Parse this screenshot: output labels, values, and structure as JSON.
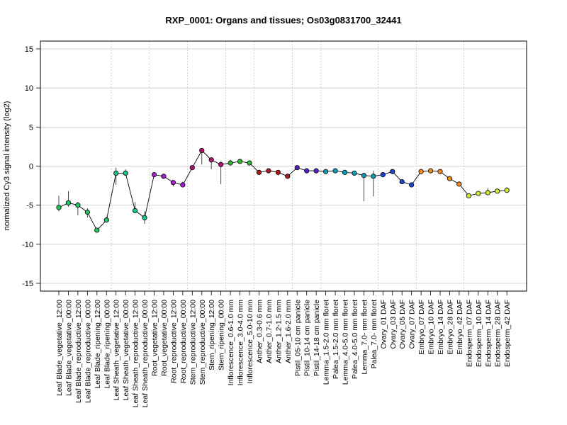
{
  "chart_data": {
    "type": "line",
    "title": "RXP_0001: Organs and tissues; Os03g0831700_32441",
    "xlabel": "",
    "ylabel": "normalized Cy3 signal intensity (log2)",
    "ylim": [
      -16,
      16
    ],
    "yticks": [
      -15,
      -10,
      -5,
      0,
      5,
      10,
      15
    ],
    "grid": true,
    "categories": [
      "Leaf Blade_vegetative_12:00",
      "Leaf Blade_vegetative_00:00",
      "Leaf Blade_reproductive_12:00",
      "Leaf Blade_reproductive_00:00",
      "Leaf Blade_ripening_12:00",
      "Leaf Blade_ripening_00:00",
      "Leaf Sheath_vegetative_12:00",
      "Leaf Sheath_vegetative_00:00",
      "Leaf Sheath_reproductive_12:00",
      "Leaf Sheath_reproductive_00:00",
      "Root_vegetative_12:00",
      "Root_vegetative_00:00",
      "Root_reproductive_12:00",
      "Root_reproductive_00:00",
      "Stem_reproductive_12:00",
      "Stem_reproductive_00:00",
      "Stem_ripening_12:00",
      "Stem_ripening_00:00",
      "Inflorescence_0.6-1.0 mm",
      "Inflorescence_3.0-4.0 mm",
      "Inflorescence_5.0-10 mm",
      "Anther_0.3-0.6 mm",
      "Anther_0.7-1.0 mm",
      "Anther_1.2-1.5 mm",
      "Anther_1.6-2.0 mm",
      "Pistil_05-10 cm panicle",
      "Pistil_10-14 cm panicle",
      "Pistil_14-18 cm panicle",
      "Lemma_1.5-2.0 mm floret",
      "Palea_1.5-2.0 mm floret",
      "Lemma_4.0-5.0 mm floret",
      "Palea_4.0-5.0 mm floret",
      "Lemma_7.0- mm floret",
      "Palea_7.0- mm floret",
      "Ovary_01 DAF",
      "Ovary_03 DAF",
      "Ovary_05 DAF",
      "Ovary_07 DAF",
      "Embryo_07 DAF",
      "Embryo_10 DAF",
      "Embryo_14 DAF",
      "Embryo_28 DAF",
      "Embryo_42 DAF",
      "Endosperm_07 DAF",
      "Endosperm_10 DAF",
      "Endosperm_14 DAF",
      "Endosperm_28 DAF",
      "Endosperm_42 DAF"
    ],
    "values": [
      -5.3,
      -4.7,
      -5.0,
      -5.9,
      -8.2,
      -6.9,
      -0.9,
      -0.9,
      -5.7,
      -6.6,
      -1.1,
      -1.3,
      -2.1,
      -2.4,
      -0.2,
      2.0,
      0.8,
      0.2,
      0.4,
      0.6,
      0.4,
      -0.8,
      -0.6,
      -0.8,
      -1.3,
      -0.2,
      -0.6,
      -0.6,
      -0.7,
      -0.6,
      -0.8,
      -0.9,
      -1.2,
      -1.3,
      -1.1,
      -0.7,
      -2.0,
      -2.4,
      -0.7,
      -0.6,
      -0.7,
      -1.6,
      -2.3,
      -3.8,
      -3.5,
      -3.4,
      -3.2,
      -3.1
    ],
    "error_low": [
      -5.8,
      -5.2,
      -6.3,
      -6.6,
      -8.4,
      -7.2,
      -2.4,
      -1.2,
      -6.0,
      -7.4,
      -1.2,
      -1.4,
      -2.6,
      -2.6,
      -0.3,
      0.2,
      -0.4,
      -2.3,
      0.3,
      0.5,
      0.3,
      -0.9,
      -0.7,
      -1.2,
      -1.4,
      -0.3,
      -0.7,
      -0.7,
      -1.0,
      -0.9,
      -0.9,
      -1.0,
      -4.5,
      -3.9,
      -1.4,
      -0.9,
      -2.1,
      -2.5,
      -0.8,
      -0.7,
      -0.8,
      -1.7,
      -2.5,
      -4.0,
      -3.7,
      -3.7,
      -3.4,
      -3.3
    ],
    "error_high": [
      -3.8,
      -3.2,
      -4.6,
      -5.4,
      -7.9,
      -6.5,
      -0.2,
      -0.4,
      -4.6,
      -5.8,
      -0.9,
      -1.1,
      -1.9,
      -2.0,
      0.0,
      2.2,
      1.0,
      0.6,
      0.8,
      0.8,
      0.7,
      -0.5,
      -0.4,
      -0.5,
      -1.1,
      0.0,
      -0.4,
      -0.4,
      -0.4,
      -0.4,
      -0.6,
      -0.7,
      -0.9,
      -0.6,
      -0.8,
      -0.5,
      -1.8,
      -2.2,
      -0.5,
      -0.4,
      -0.5,
      -1.4,
      -2.1,
      -3.6,
      -3.2,
      -2.8,
      -2.9,
      -2.7
    ],
    "group_colors": [
      "#22c55e",
      "#22c55e",
      "#22c55e",
      "#22c55e",
      "#22c55e",
      "#22c55e",
      "#10c98a",
      "#10c98a",
      "#10c98a",
      "#10c98a",
      "#a020d0",
      "#a020d0",
      "#a020d0",
      "#a020d0",
      "#b0156e",
      "#b0156e",
      "#b0156e",
      "#b0156e",
      "#2fb52f",
      "#2fb52f",
      "#2fb52f",
      "#b01c1c",
      "#b01c1c",
      "#b01c1c",
      "#b01c1c",
      "#5522c8",
      "#5522c8",
      "#5522c8",
      "#0d9fb8",
      "#0d9fb8",
      "#0d9fb8",
      "#0d9fb8",
      "#0d9fb8",
      "#0d9fb8",
      "#1f46c8",
      "#1f46c8",
      "#1f46c8",
      "#1f46c8",
      "#f08a1c",
      "#f08a1c",
      "#f08a1c",
      "#f08a1c",
      "#f08a1c",
      "#d4e82a",
      "#d4e82a",
      "#d4e82a",
      "#d4e82a",
      "#d4e82a"
    ],
    "group_separators_after": [
      5,
      9,
      13,
      17,
      20,
      24,
      27,
      33,
      37,
      42
    ]
  }
}
